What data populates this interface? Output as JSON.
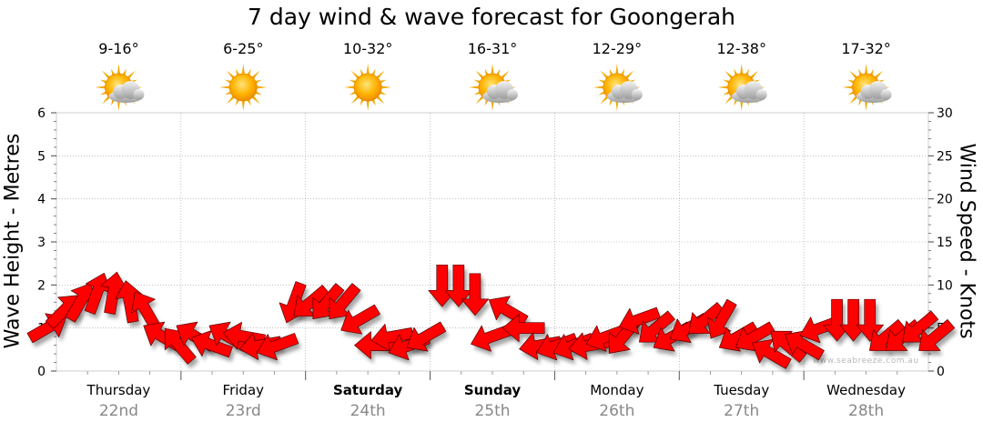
{
  "chart_data": {
    "type": "line",
    "title": "7 day wind & wave forecast for Goongerah",
    "y_left": {
      "label": "Wave Height - Metres",
      "lim": [
        0,
        6
      ],
      "ticks": [
        "0",
        "1",
        "2",
        "3",
        "4",
        "5",
        "6"
      ]
    },
    "y_right": {
      "label": "Wind Speed - Knots",
      "lim": [
        0,
        30
      ],
      "ticks": [
        "0",
        "5",
        "10",
        "15",
        "20",
        "25",
        "30"
      ]
    },
    "grid": true,
    "days": [
      {
        "name": "Thursday",
        "date": "22nd",
        "temp": "9-16°",
        "icon": "sun-cloud-icon",
        "bold": false
      },
      {
        "name": "Friday",
        "date": "23rd",
        "temp": "6-25°",
        "icon": "sun-icon",
        "bold": false
      },
      {
        "name": "Saturday",
        "date": "24th",
        "temp": "10-32°",
        "icon": "sun-icon",
        "bold": true
      },
      {
        "name": "Sunday",
        "date": "25th",
        "temp": "16-31°",
        "icon": "sun-cloud-icon",
        "bold": true
      },
      {
        "name": "Monday",
        "date": "26th",
        "temp": "12-29°",
        "icon": "sun-cloud-icon",
        "bold": false
      },
      {
        "name": "Tuesday",
        "date": "27th",
        "temp": "12-38°",
        "icon": "sun-cloud-icon",
        "bold": false
      },
      {
        "name": "Wednesday",
        "date": "28th",
        "temp": "17-32°",
        "icon": "sun-cloud-icon",
        "bold": false
      }
    ],
    "series": [
      {
        "unit": "knots",
        "color": "#ff0000",
        "wind_speed": [
          5,
          7,
          8,
          9,
          9,
          8,
          7,
          4,
          3,
          4,
          3,
          4,
          4,
          3,
          3,
          8,
          8,
          8,
          8,
          6,
          3,
          4,
          3,
          4,
          10,
          10,
          9,
          4,
          7,
          5,
          3,
          3,
          3,
          3,
          4,
          4,
          6,
          5,
          4,
          5,
          6,
          6,
          4,
          4,
          2,
          3,
          3,
          5,
          6,
          6,
          6,
          4,
          4,
          5,
          4
        ],
        "wind_dir_deg": [
          60,
          45,
          30,
          20,
          10,
          350,
          330,
          300,
          320,
          300,
          290,
          300,
          280,
          260,
          250,
          200,
          230,
          220,
          220,
          240,
          270,
          260,
          250,
          240,
          180,
          180,
          180,
          250,
          300,
          270,
          260,
          250,
          250,
          260,
          250,
          220,
          250,
          230,
          240,
          240,
          230,
          210,
          240,
          240,
          300,
          310,
          300,
          250,
          180,
          180,
          180,
          230,
          230,
          230,
          230
        ]
      }
    ],
    "watermark": "www.seabreeze.com.au"
  }
}
